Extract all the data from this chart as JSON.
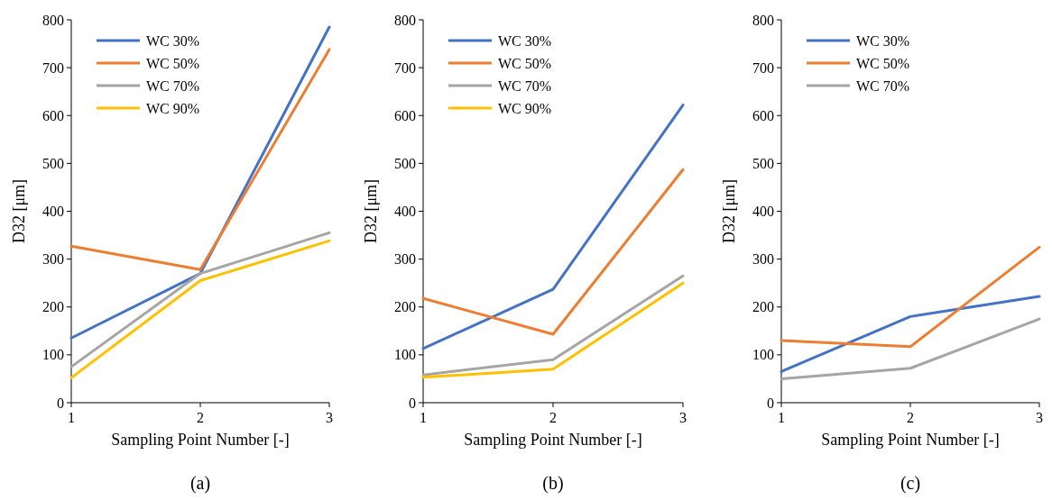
{
  "chart_data": [
    {
      "type": "line",
      "xlabel": "Sampling Point Number [-]",
      "ylabel": "D32 [μm]",
      "annotations": [
        "(a)"
      ],
      "x": [
        1,
        2,
        3
      ],
      "xlim": [
        1,
        3
      ],
      "xticks": [
        1,
        2,
        3
      ],
      "ylim": [
        0,
        800
      ],
      "yticks": [
        0,
        100,
        200,
        300,
        400,
        500,
        600,
        700,
        800
      ],
      "grid": false,
      "legend": "top left",
      "marker": "none",
      "line_style": "solid",
      "series": [
        {
          "name": "WC 30%",
          "color": "#4472c4",
          "values": [
            135,
            270,
            785
          ]
        },
        {
          "name": "WC 50%",
          "color": "#ed7d31",
          "values": [
            327,
            278,
            738
          ]
        },
        {
          "name": "WC 70%",
          "color": "#a5a5a5",
          "values": [
            75,
            270,
            355
          ]
        },
        {
          "name": "WC 90%",
          "color": "#ffc000",
          "values": [
            52,
            255,
            338
          ]
        }
      ]
    },
    {
      "type": "line",
      "xlabel": "Sampling Point Number [-]",
      "ylabel": "D32 [μm]",
      "annotations": [
        "(b)"
      ],
      "x": [
        1,
        2,
        3
      ],
      "xlim": [
        1,
        3
      ],
      "xticks": [
        1,
        2,
        3
      ],
      "ylim": [
        0,
        800
      ],
      "yticks": [
        0,
        100,
        200,
        300,
        400,
        500,
        600,
        700,
        800
      ],
      "grid": false,
      "legend": "top left",
      "marker": "none",
      "line_style": "solid",
      "series": [
        {
          "name": "WC 30%",
          "color": "#4472c4",
          "values": [
            113,
            237,
            622
          ]
        },
        {
          "name": "WC 50%",
          "color": "#ed7d31",
          "values": [
            218,
            143,
            487
          ]
        },
        {
          "name": "WC 70%",
          "color": "#a5a5a5",
          "values": [
            58,
            90,
            265
          ]
        },
        {
          "name": "WC 90%",
          "color": "#ffc000",
          "values": [
            53,
            70,
            250
          ]
        }
      ]
    },
    {
      "type": "line",
      "xlabel": "Sampling Point Number [-]",
      "ylabel": "D32 [μm]",
      "annotations": [
        "(c)"
      ],
      "x": [
        1,
        2,
        3
      ],
      "xlim": [
        1,
        3
      ],
      "xticks": [
        1,
        2,
        3
      ],
      "ylim": [
        0,
        800
      ],
      "yticks": [
        0,
        100,
        200,
        300,
        400,
        500,
        600,
        700,
        800
      ],
      "grid": false,
      "legend": "top left",
      "marker": "none",
      "line_style": "solid",
      "series": [
        {
          "name": "WC 30%",
          "color": "#4472c4",
          "values": [
            65,
            180,
            222
          ]
        },
        {
          "name": "WC 50%",
          "color": "#ed7d31",
          "values": [
            130,
            117,
            325
          ]
        },
        {
          "name": "WC 70%",
          "color": "#a5a5a5",
          "values": [
            50,
            72,
            175
          ]
        }
      ]
    }
  ]
}
